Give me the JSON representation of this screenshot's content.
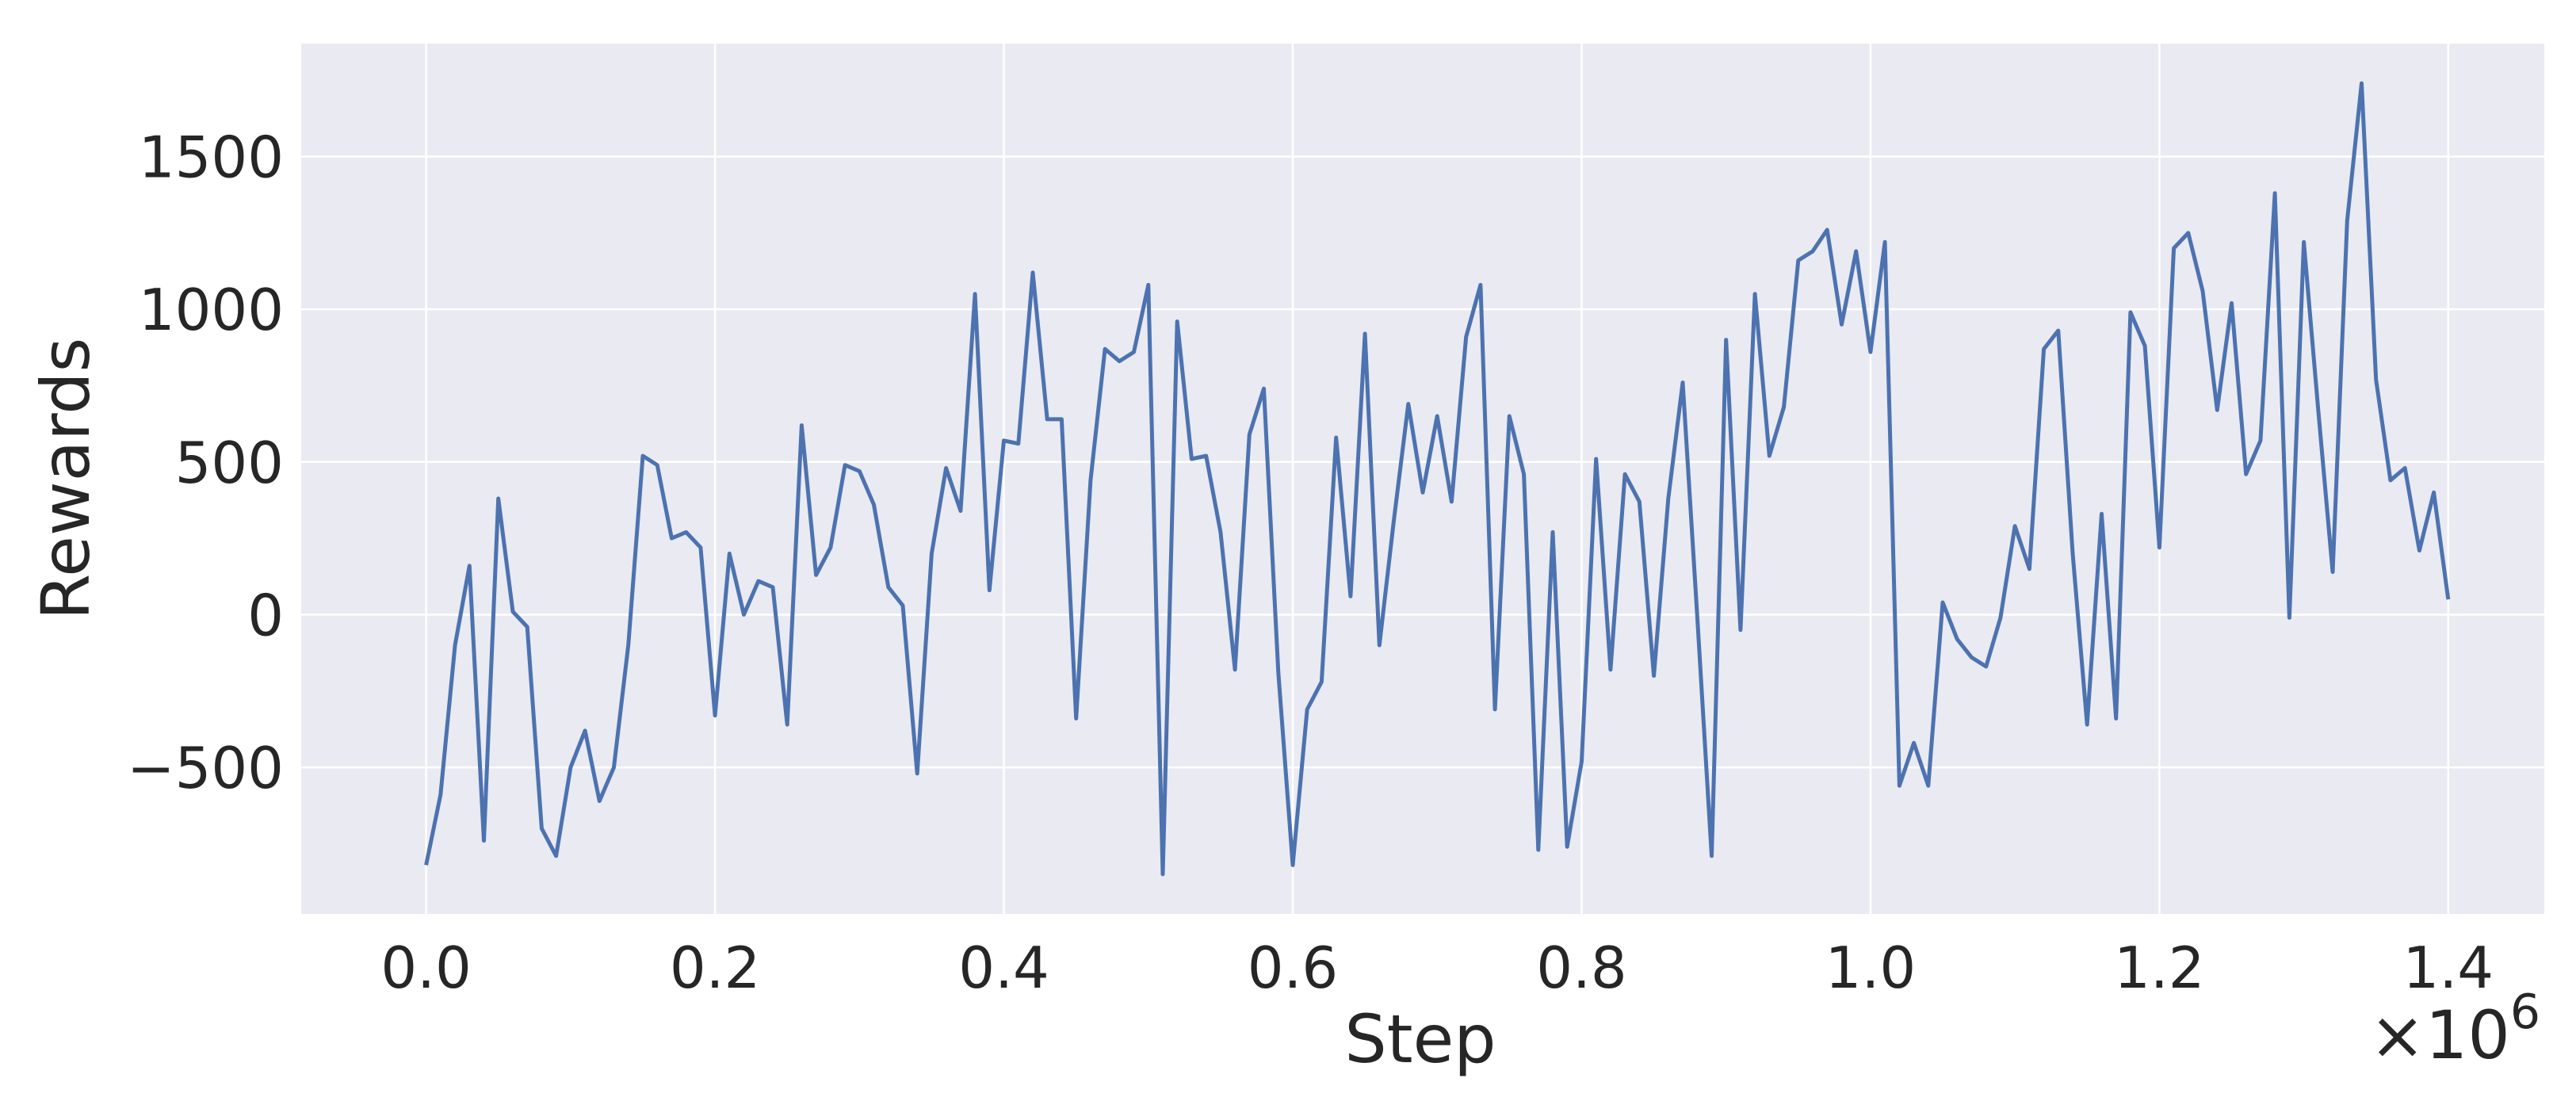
{
  "chart_data": {
    "type": "line",
    "title": "",
    "xlabel": "Step",
    "ylabel": "Rewards",
    "x_offset_label": "×10",
    "x_offset_exponent": "6",
    "xlim": [
      -0.0865,
      1.4665
    ],
    "ylim": [
      -980,
      1870
    ],
    "grid": true,
    "x_ticks": [
      0.0,
      0.2,
      0.4,
      0.6,
      0.8,
      1.0,
      1.2,
      1.4
    ],
    "x_tick_labels": [
      "0.0",
      "0.2",
      "0.4",
      "0.6",
      "0.8",
      "1.0",
      "1.2",
      "1.4"
    ],
    "y_ticks": [
      -500,
      0,
      500,
      1000,
      1500
    ],
    "y_tick_labels": [
      "−500",
      "0",
      "500",
      "1000",
      "1500"
    ],
    "colors": {
      "line": "#4c72b0",
      "plot_bg": "#eaeaf2",
      "grid": "#ffffff",
      "text": "#262626"
    },
    "series": [
      {
        "x": [
          0.0,
          0.01,
          0.02,
          0.03,
          0.04,
          0.05,
          0.06,
          0.07,
          0.08,
          0.09,
          0.1,
          0.11,
          0.12,
          0.13,
          0.14,
          0.15,
          0.16,
          0.17,
          0.18,
          0.19,
          0.2,
          0.21,
          0.22,
          0.23,
          0.24,
          0.25,
          0.26,
          0.27,
          0.28,
          0.29,
          0.3,
          0.31,
          0.32,
          0.33,
          0.34,
          0.35,
          0.36,
          0.37,
          0.38,
          0.39,
          0.4,
          0.41,
          0.42,
          0.43,
          0.44,
          0.45,
          0.46,
          0.47,
          0.48,
          0.49,
          0.5,
          0.51,
          0.52,
          0.53,
          0.54,
          0.55,
          0.56,
          0.57,
          0.58,
          0.59,
          0.6,
          0.61,
          0.62,
          0.63,
          0.64,
          0.65,
          0.66,
          0.67,
          0.68,
          0.69,
          0.7,
          0.71,
          0.72,
          0.73,
          0.74,
          0.75,
          0.76,
          0.77,
          0.78,
          0.79,
          0.8,
          0.81,
          0.82,
          0.83,
          0.84,
          0.85,
          0.86,
          0.87,
          0.88,
          0.89,
          0.9,
          0.91,
          0.92,
          0.93,
          0.94,
          0.95,
          0.96,
          0.97,
          0.98,
          0.99,
          1.0,
          1.01,
          1.02,
          1.03,
          1.04,
          1.05,
          1.06,
          1.07,
          1.08,
          1.09,
          1.1,
          1.11,
          1.12,
          1.13,
          1.14,
          1.15,
          1.16,
          1.17,
          1.18,
          1.19,
          1.2,
          1.21,
          1.22,
          1.23,
          1.24,
          1.25,
          1.26,
          1.27,
          1.28,
          1.29,
          1.3,
          1.31,
          1.32,
          1.33,
          1.34,
          1.35,
          1.36,
          1.37,
          1.38,
          1.39,
          1.4
        ],
        "y": [
          -820,
          -590,
          -100,
          160,
          -740,
          380,
          10,
          -40,
          -700,
          -790,
          -500,
          -380,
          -610,
          -500,
          -100,
          520,
          490,
          250,
          270,
          220,
          -330,
          200,
          0,
          110,
          90,
          -360,
          620,
          130,
          220,
          490,
          470,
          360,
          90,
          30,
          -520,
          200,
          480,
          340,
          1050,
          80,
          570,
          560,
          1120,
          640,
          640,
          -340,
          440,
          870,
          830,
          860,
          1080,
          -850,
          960,
          510,
          520,
          270,
          -180,
          590,
          740,
          -190,
          -820,
          -310,
          -220,
          580,
          60,
          920,
          -100,
          310,
          690,
          400,
          650,
          370,
          910,
          1080,
          -310,
          650,
          460,
          -770,
          270,
          -760,
          -480,
          510,
          -180,
          460,
          370,
          -200,
          380,
          760,
          0,
          -790,
          900,
          -50,
          1050,
          520,
          680,
          1160,
          1190,
          1260,
          950,
          1190,
          860,
          1220,
          -560,
          -420,
          -560,
          40,
          -80,
          -140,
          -170,
          -10,
          290,
          150,
          870,
          930,
          200,
          -360,
          330,
          -340,
          990,
          880,
          220,
          1200,
          1250,
          1060,
          670,
          1020,
          460,
          570,
          1380,
          -10,
          1220,
          670,
          140,
          1290,
          1740,
          770,
          440,
          480,
          210,
          400,
          50
        ]
      }
    ]
  }
}
